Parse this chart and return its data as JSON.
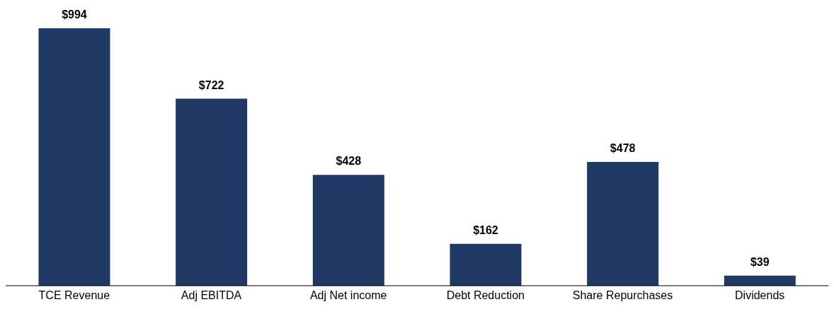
{
  "chart_data": {
    "type": "bar",
    "categories": [
      "TCE Revenue",
      "Adj EBITDA",
      "Adj Net income",
      "Debt Reduction",
      "Share Repurchases",
      "Dividends"
    ],
    "values": [
      994,
      722,
      428,
      162,
      478,
      39
    ],
    "value_labels": [
      "$994",
      "$722",
      "$428",
      "$162",
      "$478",
      "$39"
    ],
    "color": "#1f3864",
    "grid": false,
    "legend": false
  }
}
